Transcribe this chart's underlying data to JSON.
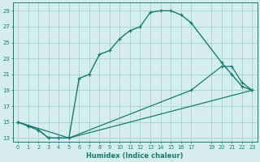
{
  "xlabel": "Humidex (Indice chaleur)",
  "background_color": "#d4eeee",
  "grid_color": "#aed4d4",
  "line_color": "#1a7a6e",
  "xlim": [
    -0.5,
    23.5
  ],
  "ylim": [
    12.5,
    30.0
  ],
  "xtick_vals": [
    0,
    1,
    2,
    3,
    4,
    5,
    6,
    7,
    8,
    9,
    10,
    11,
    12,
    13,
    14,
    15,
    16,
    17,
    19,
    20,
    21,
    22,
    23
  ],
  "ytick_vals": [
    13,
    15,
    17,
    19,
    21,
    23,
    25,
    27,
    29
  ],
  "curve1_x": [
    0,
    1,
    2,
    3,
    4,
    5,
    6,
    7,
    8,
    9,
    10,
    11,
    12,
    13,
    14,
    15,
    16,
    17,
    20,
    21,
    22,
    23
  ],
  "curve1_y": [
    15,
    14.5,
    14,
    13,
    13,
    13,
    20.5,
    21,
    23.5,
    24,
    25.5,
    26.5,
    27,
    28.8,
    29,
    29,
    28.5,
    27.5,
    22.5,
    21,
    19.5,
    19
  ],
  "curve2_x": [
    0,
    1,
    2,
    3,
    4,
    5,
    17,
    20,
    21,
    22,
    23
  ],
  "curve2_y": [
    15,
    14.5,
    14,
    13,
    13,
    13,
    19,
    22,
    22,
    20,
    19
  ],
  "curve3_x": [
    0,
    5,
    23
  ],
  "curve3_y": [
    15,
    13,
    19
  ]
}
